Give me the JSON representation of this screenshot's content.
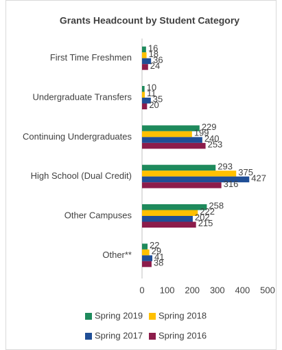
{
  "chart_data": {
    "type": "barh",
    "title": "Grants Headcount by Student Category",
    "categories": [
      "First Time Freshmen",
      "Undergraduate Transfers",
      "Continuing Undergraduates",
      "High School (Dual Credit)",
      "Other Campuses",
      "Other**"
    ],
    "series": [
      {
        "name": "Spring 2019",
        "color": "#1e8a5c",
        "values": [
          16,
          10,
          229,
          293,
          258,
          22
        ]
      },
      {
        "name": "Spring 2018",
        "color": "#ffc000",
        "values": [
          18,
          11,
          199,
          375,
          222,
          29
        ]
      },
      {
        "name": "Spring 2017",
        "color": "#1f4e96",
        "values": [
          36,
          35,
          240,
          427,
          202,
          41
        ]
      },
      {
        "name": "Spring 2016",
        "color": "#8c1c4b",
        "values": [
          24,
          20,
          253,
          316,
          215,
          38
        ]
      }
    ],
    "xlim": [
      0,
      500
    ],
    "xticks": [
      0,
      100,
      200,
      300,
      400,
      500
    ],
    "grid": false
  }
}
